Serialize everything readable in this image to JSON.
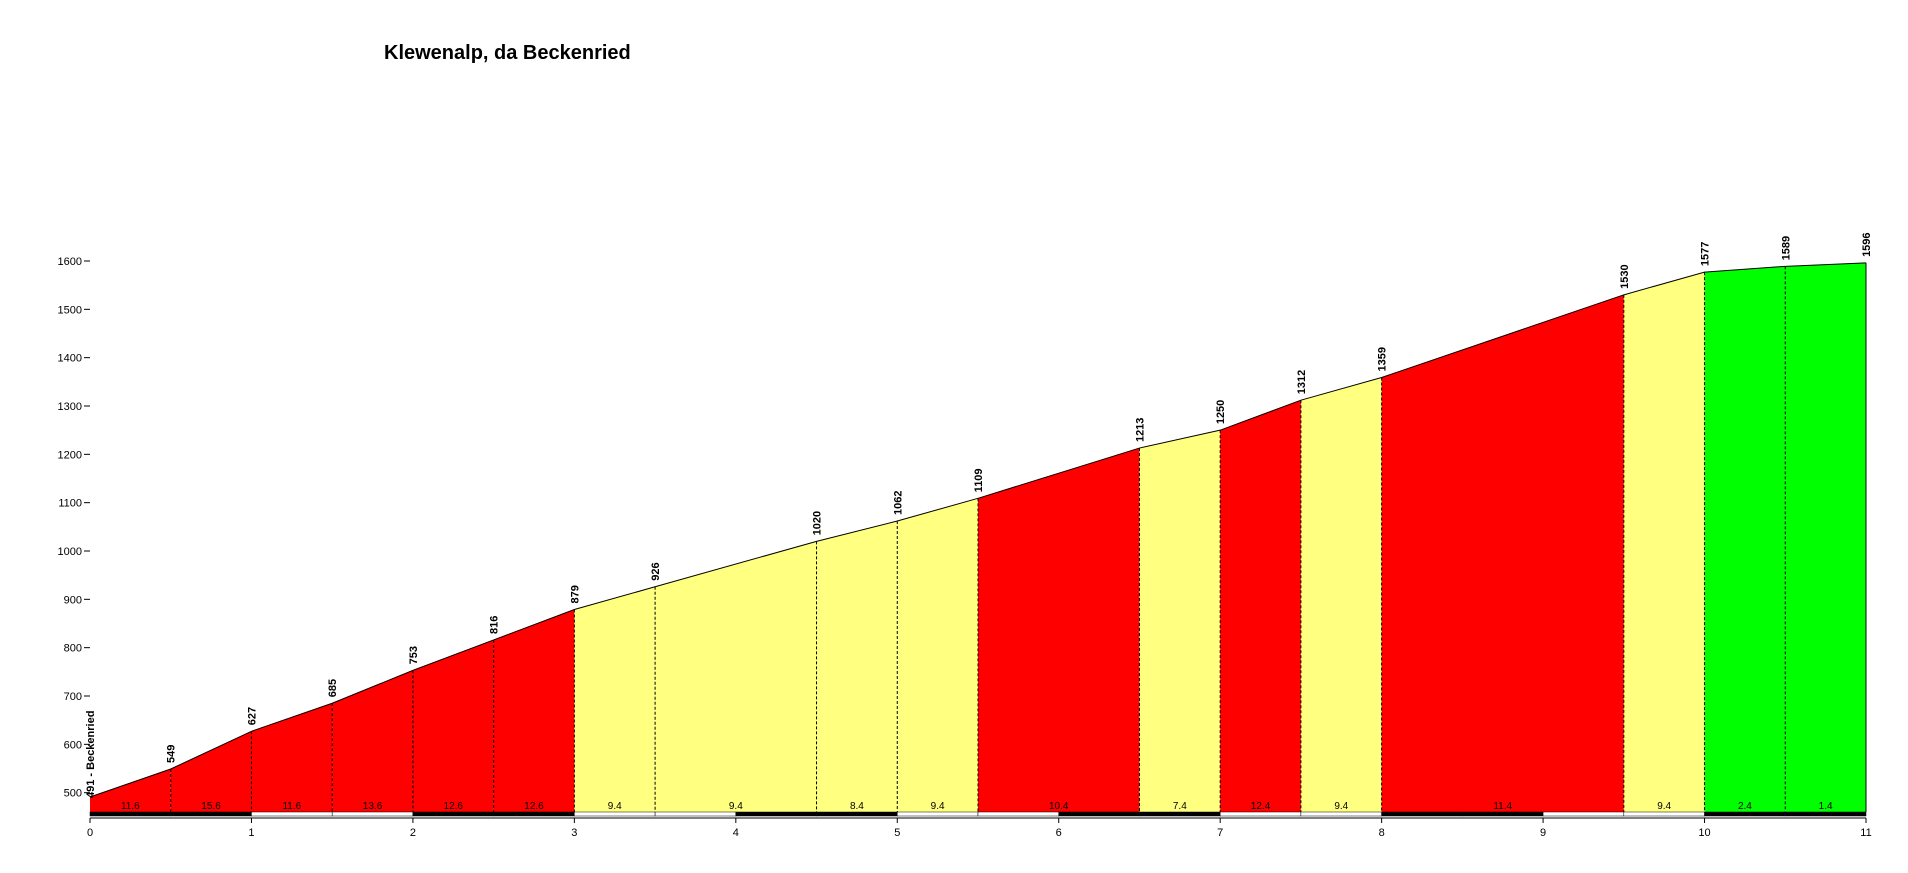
{
  "chart_data": {
    "type": "area",
    "title": "Klewenalp, da Beckenried",
    "xlabel": "",
    "ylabel": "",
    "xlim": [
      0,
      11
    ],
    "ylim": [
      460,
      1600
    ],
    "x_ticks": [
      0,
      1,
      2,
      3,
      4,
      5,
      6,
      7,
      8,
      9,
      10,
      11
    ],
    "y_ticks": [
      500,
      600,
      700,
      800,
      900,
      1000,
      1100,
      1200,
      1300,
      1400,
      1500,
      1600
    ],
    "profile_points": [
      {
        "km": 0,
        "elevation": 491,
        "label": "491 - Beckenried"
      },
      {
        "km": 0.5,
        "elevation": 549,
        "label": "549"
      },
      {
        "km": 1,
        "elevation": 627,
        "label": "627"
      },
      {
        "km": 1.5,
        "elevation": 685,
        "label": "685"
      },
      {
        "km": 2,
        "elevation": 753,
        "label": "753"
      },
      {
        "km": 2.5,
        "elevation": 816,
        "label": "816"
      },
      {
        "km": 3,
        "elevation": 879,
        "label": "879"
      },
      {
        "km": 3.5,
        "elevation": 926,
        "label": "926"
      },
      {
        "km": 4.5,
        "elevation": 1020,
        "label": "1020"
      },
      {
        "km": 5,
        "elevation": 1062,
        "label": "1062"
      },
      {
        "km": 5.5,
        "elevation": 1109,
        "label": "1109"
      },
      {
        "km": 6.5,
        "elevation": 1213,
        "label": "1213"
      },
      {
        "km": 7,
        "elevation": 1250,
        "label": "1250"
      },
      {
        "km": 7.5,
        "elevation": 1312,
        "label": "1312"
      },
      {
        "km": 8,
        "elevation": 1359,
        "label": "1359"
      },
      {
        "km": 9.5,
        "elevation": 1530,
        "label": "1530"
      },
      {
        "km": 10,
        "elevation": 1577,
        "label": "1577"
      },
      {
        "km": 10.5,
        "elevation": 1589,
        "label": "1589"
      },
      {
        "km": 11,
        "elevation": 1596,
        "label": "1596"
      }
    ],
    "segments": [
      {
        "from_km": 0,
        "to_km": 0.5,
        "grade": "11.6",
        "color": "#ff0000"
      },
      {
        "from_km": 0.5,
        "to_km": 1,
        "grade": "15.6",
        "color": "#ff0000"
      },
      {
        "from_km": 1,
        "to_km": 1.5,
        "grade": "11.6",
        "color": "#ff0000"
      },
      {
        "from_km": 1.5,
        "to_km": 2,
        "grade": "13.6",
        "color": "#ff0000"
      },
      {
        "from_km": 2,
        "to_km": 2.5,
        "grade": "12.6",
        "color": "#ff0000"
      },
      {
        "from_km": 2.5,
        "to_km": 3,
        "grade": "12.6",
        "color": "#ff0000"
      },
      {
        "from_km": 3,
        "to_km": 3.5,
        "grade": "9.4",
        "color": "#ffff80"
      },
      {
        "from_km": 3.5,
        "to_km": 4.5,
        "grade": "9.4",
        "color": "#ffff80"
      },
      {
        "from_km": 4.5,
        "to_km": 5,
        "grade": "8.4",
        "color": "#ffff80"
      },
      {
        "from_km": 5,
        "to_km": 5.5,
        "grade": "9.4",
        "color": "#ffff80"
      },
      {
        "from_km": 5.5,
        "to_km": 6.5,
        "grade": "10.4",
        "color": "#ff0000"
      },
      {
        "from_km": 6.5,
        "to_km": 7,
        "grade": "7.4",
        "color": "#ffff80"
      },
      {
        "from_km": 7,
        "to_km": 7.5,
        "grade": "12.4",
        "color": "#ff0000"
      },
      {
        "from_km": 7.5,
        "to_km": 8,
        "grade": "9.4",
        "color": "#ffff80"
      },
      {
        "from_km": 8,
        "to_km": 9.5,
        "grade": "11.4",
        "color": "#ff0000"
      },
      {
        "from_km": 9.5,
        "to_km": 10,
        "grade": "9.4",
        "color": "#ffff80"
      },
      {
        "from_km": 10,
        "to_km": 10.5,
        "grade": "2.4",
        "color": "#00ff00"
      },
      {
        "from_km": 10.5,
        "to_km": 11,
        "grade": "1.4",
        "color": "#00ff00"
      }
    ],
    "grid": false,
    "legend": "none"
  }
}
